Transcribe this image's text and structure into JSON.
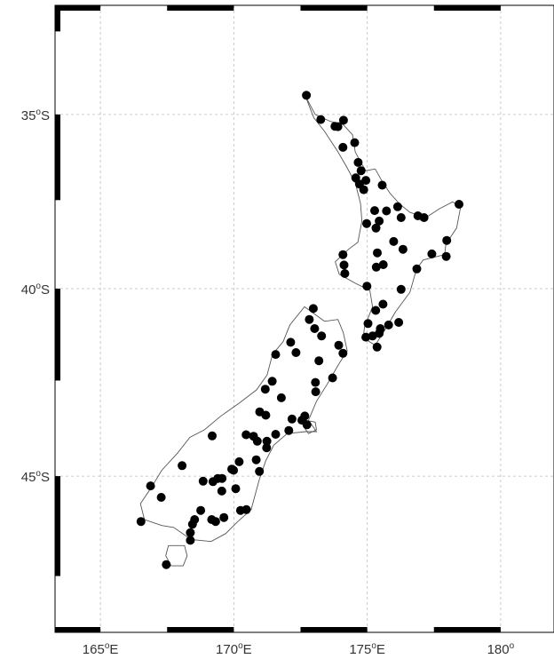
{
  "map": {
    "projection": "Mercator",
    "lon_range": [
      163.3,
      182.0
    ],
    "lat_range": [
      -48.86,
      -31.7
    ],
    "grid": true,
    "frame": "black-white alternating (plain map frame)",
    "colors": {
      "coast": "#555555",
      "station": "#000000",
      "grid": "#bdbdbd",
      "frame": "#000000",
      "label": "#333333"
    },
    "lat_ticks": [
      {
        "value": -35,
        "num": "35",
        "deg": "o",
        "hemi": "S"
      },
      {
        "value": -40,
        "num": "40",
        "deg": "o",
        "hemi": "S"
      },
      {
        "value": -45,
        "num": "45",
        "deg": "o",
        "hemi": "S"
      }
    ],
    "lon_ticks": [
      {
        "value": 165,
        "num": "165",
        "deg": "o",
        "hemi": "E"
      },
      {
        "value": 170,
        "num": "170",
        "deg": "o",
        "hemi": "E"
      },
      {
        "value": 175,
        "num": "175",
        "deg": "o",
        "hemi": "E"
      },
      {
        "value": 180,
        "num": "180",
        "deg": "o",
        "hemi": ""
      }
    ],
    "coastlines": [
      {
        "name": "north-island",
        "points": [
          [
            172.68,
            -34.45
          ],
          [
            173.05,
            -35.0
          ],
          [
            173.6,
            -35.2
          ],
          [
            174.1,
            -35.3
          ],
          [
            174.45,
            -35.6
          ],
          [
            174.55,
            -36.1
          ],
          [
            174.75,
            -36.4
          ],
          [
            174.95,
            -36.65
          ],
          [
            175.3,
            -36.6
          ],
          [
            175.55,
            -36.95
          ],
          [
            175.85,
            -37.3
          ],
          [
            176.2,
            -37.6
          ],
          [
            176.6,
            -37.85
          ],
          [
            177.2,
            -38.0
          ],
          [
            177.7,
            -37.75
          ],
          [
            178.2,
            -37.55
          ],
          [
            178.5,
            -37.7
          ],
          [
            178.35,
            -38.3
          ],
          [
            177.95,
            -38.75
          ],
          [
            177.9,
            -39.05
          ],
          [
            177.1,
            -39.2
          ],
          [
            176.85,
            -39.45
          ],
          [
            176.6,
            -40.1
          ],
          [
            176.05,
            -40.65
          ],
          [
            175.65,
            -41.15
          ],
          [
            175.3,
            -41.55
          ],
          [
            174.85,
            -41.35
          ],
          [
            174.9,
            -41.05
          ],
          [
            175.2,
            -40.5
          ],
          [
            175.1,
            -40.05
          ],
          [
            174.55,
            -39.85
          ],
          [
            173.95,
            -39.6
          ],
          [
            173.8,
            -39.25
          ],
          [
            174.3,
            -38.9
          ],
          [
            174.65,
            -38.7
          ],
          [
            174.8,
            -38.1
          ],
          [
            174.75,
            -37.6
          ],
          [
            174.55,
            -37.0
          ],
          [
            174.2,
            -36.5
          ],
          [
            173.9,
            -36.1
          ],
          [
            173.4,
            -35.5
          ],
          [
            173.0,
            -35.1
          ],
          [
            172.68,
            -34.45
          ]
        ]
      },
      {
        "name": "south-island",
        "points": [
          [
            172.65,
            -40.5
          ],
          [
            173.4,
            -40.9
          ],
          [
            173.9,
            -40.85
          ],
          [
            174.1,
            -41.2
          ],
          [
            174.25,
            -41.7
          ],
          [
            173.9,
            -42.1
          ],
          [
            173.5,
            -42.6
          ],
          [
            173.1,
            -43.05
          ],
          [
            172.8,
            -43.55
          ],
          [
            173.1,
            -43.85
          ],
          [
            172.7,
            -43.85
          ],
          [
            172.0,
            -43.9
          ],
          [
            171.5,
            -44.2
          ],
          [
            171.2,
            -44.6
          ],
          [
            170.95,
            -45.1
          ],
          [
            170.65,
            -45.85
          ],
          [
            170.15,
            -46.15
          ],
          [
            169.7,
            -46.45
          ],
          [
            169.15,
            -46.65
          ],
          [
            168.4,
            -46.6
          ],
          [
            167.75,
            -46.3
          ],
          [
            167.3,
            -46.25
          ],
          [
            166.65,
            -46.1
          ],
          [
            166.5,
            -45.7
          ],
          [
            166.9,
            -45.3
          ],
          [
            167.3,
            -44.85
          ],
          [
            167.9,
            -44.4
          ],
          [
            168.35,
            -44.0
          ],
          [
            168.9,
            -43.8
          ],
          [
            169.5,
            -43.45
          ],
          [
            170.2,
            -43.1
          ],
          [
            170.85,
            -42.75
          ],
          [
            171.25,
            -42.35
          ],
          [
            171.45,
            -41.8
          ],
          [
            171.85,
            -41.45
          ],
          [
            172.1,
            -41.0
          ],
          [
            172.65,
            -40.5
          ]
        ]
      },
      {
        "name": "stewart-island",
        "points": [
          [
            167.55,
            -46.75
          ],
          [
            168.15,
            -46.75
          ],
          [
            168.25,
            -47.0
          ],
          [
            168.1,
            -47.25
          ],
          [
            167.65,
            -47.25
          ],
          [
            167.45,
            -47.0
          ],
          [
            167.55,
            -46.75
          ]
        ]
      },
      {
        "name": "banks-peninsula",
        "points": [
          [
            172.65,
            -43.55
          ],
          [
            173.05,
            -43.6
          ],
          [
            173.1,
            -43.8
          ],
          [
            172.8,
            -43.9
          ],
          [
            172.65,
            -43.75
          ],
          [
            172.65,
            -43.55
          ]
        ]
      }
    ],
    "stations": [
      [
        172.72,
        -34.43
      ],
      [
        173.26,
        -35.15
      ],
      [
        173.79,
        -35.35
      ],
      [
        174.11,
        -35.17
      ],
      [
        174.53,
        -35.83
      ],
      [
        173.9,
        -35.36
      ],
      [
        174.09,
        -35.97
      ],
      [
        174.66,
        -36.41
      ],
      [
        174.57,
        -36.86
      ],
      [
        174.77,
        -36.65
      ],
      [
        174.71,
        -37.04
      ],
      [
        174.95,
        -36.93
      ],
      [
        174.87,
        -37.2
      ],
      [
        175.56,
        -37.07
      ],
      [
        175.28,
        -37.8
      ],
      [
        175.33,
        -38.3
      ],
      [
        175.72,
        -37.81
      ],
      [
        176.14,
        -37.69
      ],
      [
        176.27,
        -38.0
      ],
      [
        176.9,
        -37.95
      ],
      [
        177.13,
        -38.0
      ],
      [
        178.44,
        -37.62
      ],
      [
        177.98,
        -38.65
      ],
      [
        177.96,
        -39.1
      ],
      [
        177.42,
        -39.03
      ],
      [
        176.86,
        -39.45
      ],
      [
        176.34,
        -38.9
      ],
      [
        175.99,
        -38.68
      ],
      [
        175.45,
        -38.1
      ],
      [
        175.38,
        -39.0
      ],
      [
        175.6,
        -39.33
      ],
      [
        175.34,
        -39.4
      ],
      [
        174.99,
        -39.93
      ],
      [
        175.32,
        -40.6
      ],
      [
        175.59,
        -40.43
      ],
      [
        176.27,
        -40.02
      ],
      [
        175.8,
        -41.0
      ],
      [
        176.18,
        -40.93
      ],
      [
        175.49,
        -41.1
      ],
      [
        175.2,
        -41.3
      ],
      [
        175.37,
        -41.6
      ],
      [
        174.95,
        -41.33
      ],
      [
        175.45,
        -41.23
      ],
      [
        175.03,
        -40.96
      ],
      [
        174.09,
        -39.05
      ],
      [
        174.13,
        -39.34
      ],
      [
        174.16,
        -39.58
      ],
      [
        174.98,
        -38.17
      ],
      [
        172.98,
        -40.55
      ],
      [
        172.83,
        -40.85
      ],
      [
        173.03,
        -41.1
      ],
      [
        173.29,
        -41.3
      ],
      [
        173.93,
        -41.55
      ],
      [
        174.09,
        -41.77
      ],
      [
        173.7,
        -42.43
      ],
      [
        173.19,
        -41.97
      ],
      [
        172.33,
        -41.75
      ],
      [
        172.13,
        -41.47
      ],
      [
        171.57,
        -41.8
      ],
      [
        171.44,
        -42.52
      ],
      [
        171.18,
        -42.73
      ],
      [
        171.78,
        -42.96
      ],
      [
        172.66,
        -43.44
      ],
      [
        172.55,
        -43.55
      ],
      [
        172.18,
        -43.52
      ],
      [
        172.06,
        -43.82
      ],
      [
        172.74,
        -43.67
      ],
      [
        173.06,
        -42.55
      ],
      [
        173.07,
        -42.8
      ],
      [
        171.2,
        -43.42
      ],
      [
        171.57,
        -43.92
      ],
      [
        170.88,
        -44.1
      ],
      [
        171.24,
        -44.1
      ],
      [
        171.23,
        -44.27
      ],
      [
        170.74,
        -43.97
      ],
      [
        170.46,
        -43.93
      ],
      [
        170.84,
        -44.58
      ],
      [
        170.96,
        -44.88
      ],
      [
        170.2,
        -44.63
      ],
      [
        169.99,
        -44.85
      ],
      [
        169.92,
        -44.82
      ],
      [
        169.4,
        -45.06
      ],
      [
        169.56,
        -45.06
      ],
      [
        169.22,
        -45.14
      ],
      [
        168.85,
        -45.13
      ],
      [
        169.55,
        -45.38
      ],
      [
        170.07,
        -45.32
      ],
      [
        170.47,
        -45.85
      ],
      [
        170.25,
        -45.87
      ],
      [
        169.63,
        -46.05
      ],
      [
        169.32,
        -46.15
      ],
      [
        169.17,
        -46.1
      ],
      [
        168.76,
        -45.87
      ],
      [
        168.53,
        -46.1
      ],
      [
        168.45,
        -46.22
      ],
      [
        168.37,
        -46.43
      ],
      [
        168.37,
        -46.62
      ],
      [
        167.47,
        -47.22
      ],
      [
        166.52,
        -46.15
      ],
      [
        167.28,
        -45.54
      ],
      [
        166.88,
        -45.25
      ],
      [
        168.06,
        -44.73
      ],
      [
        169.19,
        -43.96
      ],
      [
        170.97,
        -43.33
      ]
    ]
  }
}
